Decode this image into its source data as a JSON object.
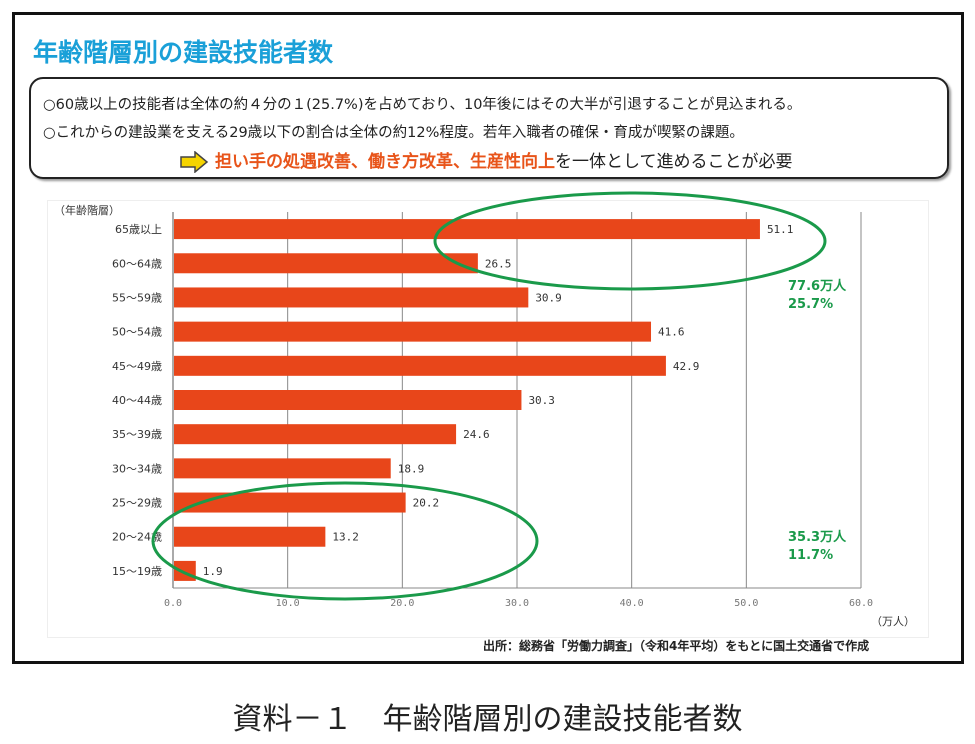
{
  "title": "年齢階層別の建設技能者数",
  "notes": {
    "line1": "○60歳以上の技能者は全体の約４分の１(25.7%)を占めており、10年後にはその大半が引退することが見込まれる。",
    "line2": "○これからの建設業を支える29歳以下の割合は全体の約12%程度。若年入職者の確保・育成が喫緊の課題。",
    "conclusion_highlight": "担い手の処遇改善、働き方改革、生産性向上",
    "conclusion_rest": "を一体として進めることが必要",
    "arrow_icon": "right-arrow-icon"
  },
  "chart_data": {
    "type": "bar",
    "orientation": "horizontal",
    "ylabel": "（年齢階層）",
    "xlabel": "（万人）",
    "categories": [
      "65歳以上",
      "60～64歳",
      "55～59歳",
      "50～54歳",
      "45～49歳",
      "40～44歳",
      "35～39歳",
      "30～34歳",
      "25～29歳",
      "20～24歳",
      "15～19歳"
    ],
    "values": [
      51.1,
      26.5,
      30.9,
      41.6,
      42.9,
      30.3,
      24.6,
      18.9,
      20.2,
      13.2,
      1.9
    ],
    "value_labels": [
      "51.1",
      "26.5",
      "30.9",
      "41.6",
      "42.9",
      "30.3",
      "24.6",
      "18.9",
      "20.2",
      "13.2",
      "1.9"
    ],
    "xlim": [
      0,
      60
    ],
    "xticks": [
      "0.0",
      "10.0",
      "20.0",
      "30.0",
      "40.0",
      "50.0",
      "60.0"
    ],
    "grid": true,
    "bar_color": "#e8461a",
    "annotations": [
      {
        "text1": "77.6万人",
        "text2": "25.7%",
        "color": "#1a9a4a",
        "groups": [
          "65歳以上",
          "60～64歳"
        ]
      },
      {
        "text1": "35.3万人",
        "text2": "11.7%",
        "color": "#1a9a4a",
        "groups": [
          "25～29歳",
          "20～24歳",
          "15～19歳"
        ]
      }
    ]
  },
  "source": "出所：総務省「労働力調査」（令和4年平均）をもとに国土交通省で作成",
  "caption": "資料－１　年齢階層別の建設技能者数"
}
